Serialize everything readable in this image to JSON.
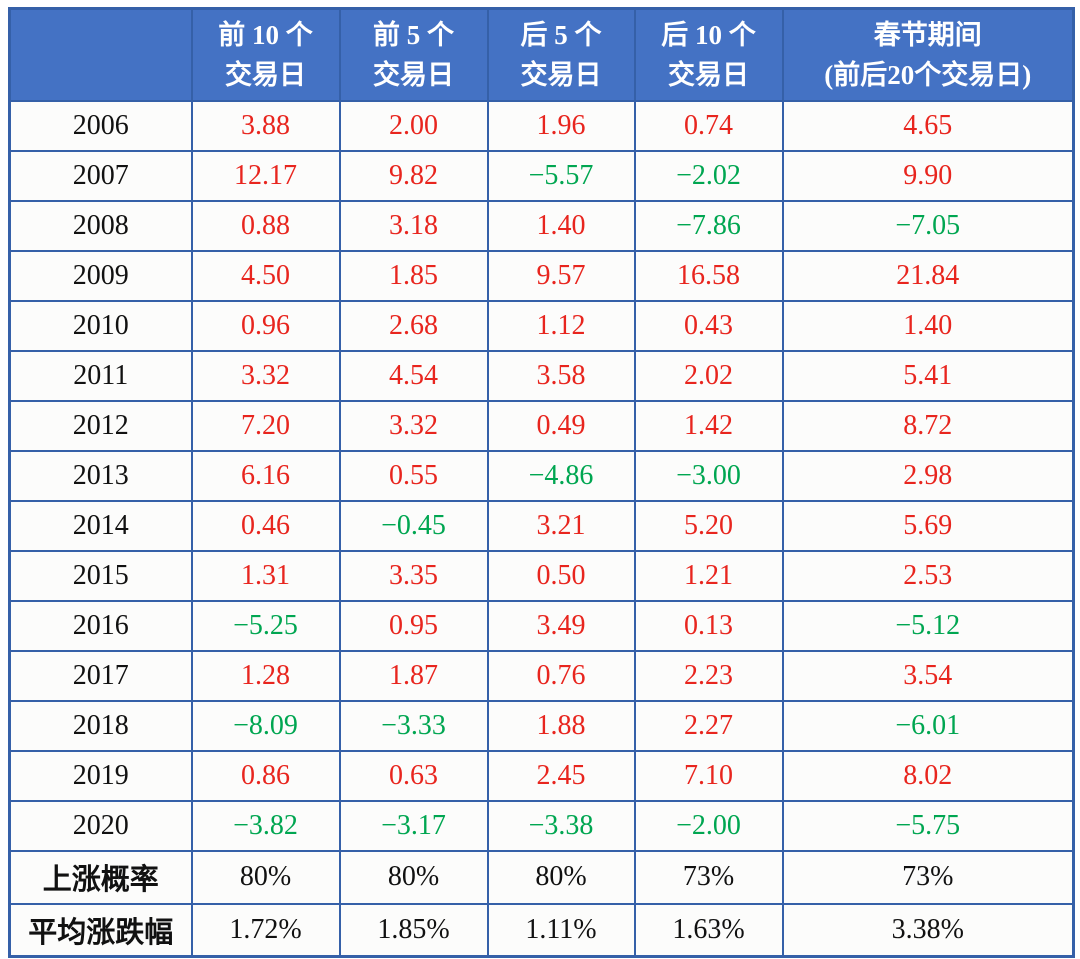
{
  "colors": {
    "header_bg": "#4472C4",
    "header_text": "#FFFFFF",
    "border": "#3560A8",
    "positive_red": "#E8251E",
    "negative_green": "#00A651",
    "neutral_text": "#111111"
  },
  "header": {
    "corner_label": "",
    "columns": [
      {
        "line1": "前 10 个",
        "line2": "交易日"
      },
      {
        "line1": "前 5 个",
        "line2": "交易日"
      },
      {
        "line1": "后 5 个",
        "line2": "交易日"
      },
      {
        "line1": "后 10 个",
        "line2": "交易日"
      },
      {
        "line1": "春节期间",
        "line2": "(前后20个交易日)"
      }
    ]
  },
  "rows": [
    {
      "label": "2006",
      "values": [
        "3.88",
        "2.00",
        "1.96",
        "0.74",
        "4.65"
      ]
    },
    {
      "label": "2007",
      "values": [
        "12.17",
        "9.82",
        "−5.57",
        "−2.02",
        "9.90"
      ]
    },
    {
      "label": "2008",
      "values": [
        "0.88",
        "3.18",
        "1.40",
        "−7.86",
        "−7.05"
      ]
    },
    {
      "label": "2009",
      "values": [
        "4.50",
        "1.85",
        "9.57",
        "16.58",
        "21.84"
      ]
    },
    {
      "label": "2010",
      "values": [
        "0.96",
        "2.68",
        "1.12",
        "0.43",
        "1.40"
      ]
    },
    {
      "label": "2011",
      "values": [
        "3.32",
        "4.54",
        "3.58",
        "2.02",
        "5.41"
      ]
    },
    {
      "label": "2012",
      "values": [
        "7.20",
        "3.32",
        "0.49",
        "1.42",
        "8.72"
      ]
    },
    {
      "label": "2013",
      "values": [
        "6.16",
        "0.55",
        "−4.86",
        "−3.00",
        "2.98"
      ]
    },
    {
      "label": "2014",
      "values": [
        "0.46",
        "−0.45",
        "3.21",
        "5.20",
        "5.69"
      ]
    },
    {
      "label": "2015",
      "values": [
        "1.31",
        "3.35",
        "0.50",
        "1.21",
        "2.53"
      ]
    },
    {
      "label": "2016",
      "values": [
        "−5.25",
        "0.95",
        "3.49",
        "0.13",
        "−5.12"
      ]
    },
    {
      "label": "2017",
      "values": [
        "1.28",
        "1.87",
        "0.76",
        "2.23",
        "3.54"
      ]
    },
    {
      "label": "2018",
      "values": [
        "−8.09",
        "−3.33",
        "1.88",
        "2.27",
        "−6.01"
      ]
    },
    {
      "label": "2019",
      "values": [
        "0.86",
        "0.63",
        "2.45",
        "7.10",
        "8.02"
      ]
    },
    {
      "label": "2020",
      "values": [
        "−3.82",
        "−3.17",
        "−3.38",
        "−2.00",
        "−5.75"
      ]
    }
  ],
  "summary_rows": [
    {
      "label": "上涨概率",
      "values": [
        "80%",
        "80%",
        "80%",
        "73%",
        "73%"
      ]
    },
    {
      "label": "平均涨跌幅",
      "values": [
        "1.72%",
        "1.85%",
        "1.11%",
        "1.63%",
        "3.38%"
      ]
    }
  ],
  "chart_data": {
    "type": "table",
    "columns": [
      "",
      "前10个交易日",
      "前5个交易日",
      "后5个交易日",
      "后10个交易日",
      "春节期间(前后20个交易日)"
    ],
    "rows": [
      [
        "2006",
        3.88,
        2.0,
        1.96,
        0.74,
        4.65
      ],
      [
        "2007",
        12.17,
        9.82,
        -5.57,
        -2.02,
        9.9
      ],
      [
        "2008",
        0.88,
        3.18,
        1.4,
        -7.86,
        -7.05
      ],
      [
        "2009",
        4.5,
        1.85,
        9.57,
        16.58,
        21.84
      ],
      [
        "2010",
        0.96,
        2.68,
        1.12,
        0.43,
        1.4
      ],
      [
        "2011",
        3.32,
        4.54,
        3.58,
        2.02,
        5.41
      ],
      [
        "2012",
        7.2,
        3.32,
        0.49,
        1.42,
        8.72
      ],
      [
        "2013",
        6.16,
        0.55,
        -4.86,
        -3.0,
        2.98
      ],
      [
        "2014",
        0.46,
        -0.45,
        3.21,
        5.2,
        5.69
      ],
      [
        "2015",
        1.31,
        3.35,
        0.5,
        1.21,
        2.53
      ],
      [
        "2016",
        -5.25,
        0.95,
        3.49,
        0.13,
        -5.12
      ],
      [
        "2017",
        1.28,
        1.87,
        0.76,
        2.23,
        3.54
      ],
      [
        "2018",
        -8.09,
        -3.33,
        1.88,
        2.27,
        -6.01
      ],
      [
        "2019",
        0.86,
        0.63,
        2.45,
        7.1,
        8.02
      ],
      [
        "2020",
        -3.82,
        -3.17,
        -3.38,
        -2.0,
        -5.75
      ],
      [
        "上涨概率",
        "80%",
        "80%",
        "80%",
        "73%",
        "73%"
      ],
      [
        "平均涨跌幅",
        "1.72%",
        "1.85%",
        "1.11%",
        "1.63%",
        "3.38%"
      ]
    ],
    "legend": "red = gain (positive), green = loss (negative)",
    "grid": true
  }
}
